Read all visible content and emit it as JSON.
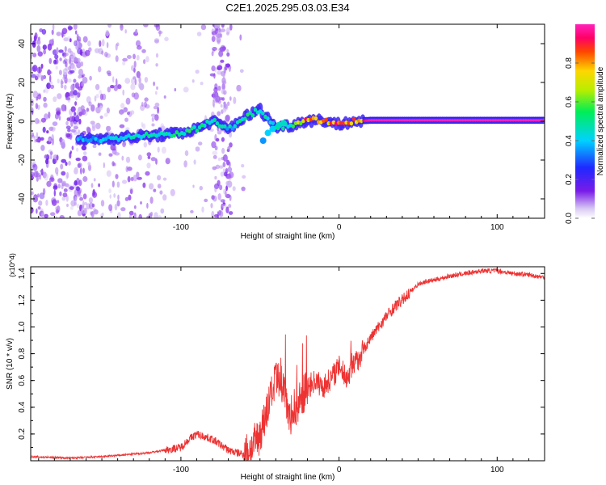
{
  "title": "C2E1.2025.295.03.03.E34",
  "chart_data": [
    {
      "type": "heatmap",
      "xlabel": "Height of straight line (km)",
      "ylabel": "Frequency (Hz)",
      "xlim": [
        -195,
        130
      ],
      "ylim": [
        -50,
        50
      ],
      "xticks": [
        -100,
        0,
        100
      ],
      "yticks": [
        -40,
        -20,
        0,
        20,
        40
      ],
      "colorbar": {
        "label": "Normalized spectral amplitude",
        "range": [
          0.0,
          1.0
        ],
        "ticks": [
          0.0,
          0.2,
          0.4,
          0.6,
          0.8
        ]
      },
      "ridge": [
        {
          "x": -160,
          "f": -9.5,
          "a": 0.4
        },
        {
          "x": -150,
          "f": -9.0,
          "a": 0.45
        },
        {
          "x": -140,
          "f": -8.5,
          "a": 0.45
        },
        {
          "x": -130,
          "f": -8.0,
          "a": 0.5
        },
        {
          "x": -120,
          "f": -7.5,
          "a": 0.5
        },
        {
          "x": -110,
          "f": -7.0,
          "a": 0.5
        },
        {
          "x": -100,
          "f": -6.0,
          "a": 0.55
        },
        {
          "x": -90,
          "f": -4.0,
          "a": 0.55
        },
        {
          "x": -80,
          "f": 0.0,
          "a": 0.5
        },
        {
          "x": -70,
          "f": -4.0,
          "a": 0.45
        },
        {
          "x": -60,
          "f": 2.0,
          "a": 0.55
        },
        {
          "x": -50,
          "f": 6.0,
          "a": 0.55
        },
        {
          "x": -40,
          "f": -3.0,
          "a": 0.5
        },
        {
          "x": -30,
          "f": -2.0,
          "a": 0.55
        },
        {
          "x": -20,
          "f": 0.5,
          "a": 0.95
        },
        {
          "x": -10,
          "f": 0.5,
          "a": 0.85
        },
        {
          "x": 0,
          "f": -1.5,
          "a": 0.9
        },
        {
          "x": 10,
          "f": 0.0,
          "a": 0.9
        },
        {
          "x": 20,
          "f": 0.5,
          "a": 1.0
        },
        {
          "x": 60,
          "f": 0.5,
          "a": 1.0
        },
        {
          "x": 100,
          "f": 0.5,
          "a": 1.0
        },
        {
          "x": 130,
          "f": 0.5,
          "a": 1.0
        }
      ]
    },
    {
      "type": "line",
      "xlabel": "Height of straight line (km)",
      "ylabel": "SNR (10 * v/v)",
      "yscale_label": "(x10^4)",
      "xlim": [
        -195,
        130
      ],
      "ylim": [
        0,
        1.45
      ],
      "xticks": [
        -100,
        0,
        100
      ],
      "yticks": [
        0.2,
        0.4,
        0.6,
        0.8,
        1.0,
        1.2,
        1.4
      ],
      "series": [
        {
          "name": "SNR",
          "color": "#ee3333",
          "x": [
            -195,
            -170,
            -150,
            -130,
            -120,
            -110,
            -100,
            -95,
            -90,
            -85,
            -80,
            -75,
            -70,
            -65,
            -60,
            -55,
            -50,
            -45,
            -40,
            -35,
            -30,
            -25,
            -20,
            -15,
            -10,
            -5,
            0,
            5,
            10,
            15,
            20,
            25,
            30,
            35,
            40,
            45,
            50,
            55,
            60,
            70,
            80,
            90,
            100,
            110,
            120,
            130
          ],
          "y": [
            0.03,
            0.02,
            0.03,
            0.05,
            0.06,
            0.08,
            0.1,
            0.16,
            0.2,
            0.18,
            0.16,
            0.12,
            0.08,
            0.06,
            0.05,
            0.1,
            0.2,
            0.4,
            0.6,
            0.55,
            0.3,
            0.45,
            0.55,
            0.6,
            0.55,
            0.62,
            0.7,
            0.62,
            0.72,
            0.82,
            0.92,
            1.0,
            1.08,
            1.15,
            1.2,
            1.26,
            1.32,
            1.34,
            1.35,
            1.38,
            1.4,
            1.42,
            1.42,
            1.4,
            1.39,
            1.37
          ]
        }
      ]
    }
  ]
}
